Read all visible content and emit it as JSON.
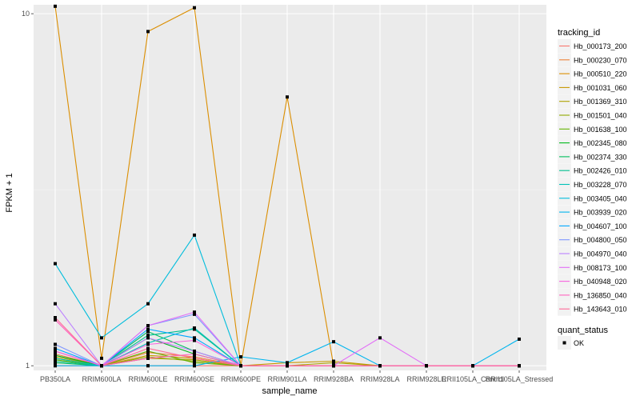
{
  "chart_data": {
    "type": "line",
    "xlabel": "sample_name",
    "ylabel": "FPKM + 1",
    "y_scale": "log",
    "ylim": [
      0.97,
      10.6
    ],
    "y_ticks": [
      1,
      10
    ],
    "y_tick_labels": [
      "1",
      "10"
    ],
    "categories": [
      "PB350LA",
      "RRIM600LA",
      "RRIM600LE",
      "RRIM600SE",
      "RRIM600PE",
      "RRIM901LA",
      "RRIM928BA",
      "RRIM928LA",
      "RRIM928LE",
      "RRII105LA_Control",
      "RRII105LA_Stressed"
    ],
    "legend": {
      "title": "tracking_id",
      "position": "right"
    },
    "legend2": {
      "title": "quant_status",
      "label": "OK"
    },
    "panel_background": "#ebebeb",
    "grid": true,
    "series": [
      {
        "name": "Hb_000173_200",
        "color": "#F8766D",
        "values": [
          1.0,
          1.0,
          1.0,
          1.0,
          1.0,
          1.0,
          1.0,
          1.0,
          1.0,
          1.0,
          1.0
        ]
      },
      {
        "name": "Hb_000230_070",
        "color": "#EC8239",
        "values": [
          1.08,
          1.0,
          1.09,
          1.06,
          1.0,
          1.0,
          1.0,
          1.0,
          1.0,
          1.0,
          1.0
        ]
      },
      {
        "name": "Hb_000510_220",
        "color": "#DB8E00",
        "values": [
          10.5,
          1.05,
          8.9,
          10.4,
          1.0,
          5.8,
          1.0,
          1.0,
          1.0,
          1.0,
          1.0
        ]
      },
      {
        "name": "Hb_001031_060",
        "color": "#C79800",
        "values": [
          1.1,
          1.0,
          1.07,
          1.05,
          1.0,
          1.02,
          1.03,
          1.0,
          1.0,
          1.0,
          1.0
        ]
      },
      {
        "name": "Hb_001369_310",
        "color": "#AEA200",
        "values": [
          1.06,
          1.0,
          1.05,
          1.04,
          1.0,
          1.0,
          1.02,
          1.0,
          1.0,
          1.0,
          1.0
        ]
      },
      {
        "name": "Hb_001501_040",
        "color": "#8FAA00",
        "values": [
          1.05,
          1.0,
          1.06,
          1.03,
          1.0,
          1.0,
          1.0,
          1.0,
          1.0,
          1.0,
          1.0
        ]
      },
      {
        "name": "Hb_001638_100",
        "color": "#64B200",
        "values": [
          1.04,
          1.0,
          1.1,
          1.02,
          1.0,
          1.0,
          1.0,
          1.0,
          1.0,
          1.0,
          1.0
        ]
      },
      {
        "name": "Hb_002345_080",
        "color": "#00B81B",
        "values": [
          1.07,
          1.0,
          1.2,
          1.08,
          1.0,
          1.0,
          1.0,
          1.0,
          1.0,
          1.0,
          1.0
        ]
      },
      {
        "name": "Hb_002374_330",
        "color": "#00BD5C",
        "values": [
          1.02,
          1.0,
          1.25,
          1.1,
          1.0,
          1.0,
          1.0,
          1.0,
          1.0,
          1.0,
          1.0
        ]
      },
      {
        "name": "Hb_002426_010",
        "color": "#00C08E",
        "values": [
          1.03,
          1.0,
          1.22,
          1.27,
          1.0,
          1.0,
          1.0,
          1.0,
          1.0,
          1.0,
          1.0
        ]
      },
      {
        "name": "Hb_003228_070",
        "color": "#00C1B7",
        "values": [
          1.05,
          1.0,
          1.16,
          1.28,
          1.0,
          1.0,
          1.0,
          1.0,
          1.0,
          1.0,
          1.0
        ]
      },
      {
        "name": "Hb_003405_040",
        "color": "#00BDDC",
        "values": [
          1.95,
          1.2,
          1.5,
          2.35,
          1.0,
          1.0,
          1.0,
          1.0,
          1.0,
          1.0,
          1.0
        ]
      },
      {
        "name": "Hb_003939_020",
        "color": "#00B5EE",
        "values": [
          1.0,
          1.0,
          1.0,
          1.0,
          1.06,
          1.02,
          1.17,
          1.0,
          1.0,
          1.0,
          1.19
        ]
      },
      {
        "name": "Hb_004607_100",
        "color": "#00A7FF",
        "values": [
          1.12,
          1.0,
          1.27,
          1.2,
          1.0,
          1.0,
          1.0,
          1.0,
          1.0,
          1.0,
          1.0
        ]
      },
      {
        "name": "Hb_004800_050",
        "color": "#7F96FF",
        "values": [
          1.15,
          1.0,
          1.3,
          1.4,
          1.0,
          1.0,
          1.0,
          1.0,
          1.0,
          1.0,
          1.0
        ]
      },
      {
        "name": "Hb_004970_040",
        "color": "#BC81FF",
        "values": [
          1.5,
          1.0,
          1.2,
          1.1,
          1.0,
          1.0,
          1.0,
          1.0,
          1.0,
          1.0,
          1.0
        ]
      },
      {
        "name": "Hb_008173_100",
        "color": "#E26EF7",
        "values": [
          1.1,
          1.0,
          1.3,
          1.42,
          1.0,
          1.0,
          1.0,
          1.2,
          1.0,
          1.0,
          1.0
        ]
      },
      {
        "name": "Hb_040948_020",
        "color": "#F863DF",
        "values": [
          1.1,
          1.0,
          1.15,
          1.18,
          1.0,
          1.0,
          1.0,
          1.0,
          1.0,
          1.0,
          1.0
        ]
      },
      {
        "name": "Hb_136850_040",
        "color": "#FF62BF",
        "values": [
          1.35,
          1.0,
          1.05,
          1.08,
          1.0,
          1.0,
          1.0,
          1.0,
          1.0,
          1.0,
          1.0
        ]
      },
      {
        "name": "Hb_143643_010",
        "color": "#FF6A98",
        "values": [
          1.37,
          1.0,
          1.12,
          1.05,
          1.0,
          1.0,
          1.0,
          1.0,
          1.0,
          1.0,
          1.0
        ]
      }
    ]
  }
}
